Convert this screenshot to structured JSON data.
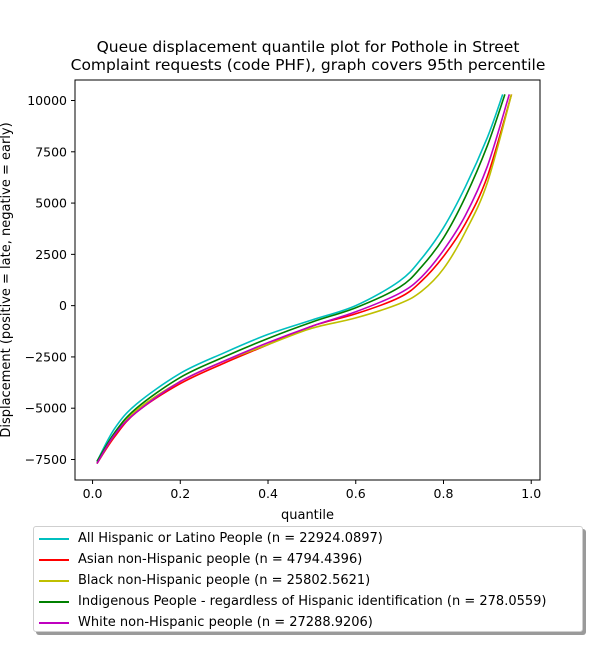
{
  "chart_data": {
    "type": "line",
    "title": "Queue displacement quantile plot for Pothole in Street\nComplaint  requests (code PHF), graph covers 95th percentile",
    "xlabel": "quantile",
    "ylabel": "Displacement (positive = late, negative = early)",
    "xlim": [
      -0.04,
      1.02
    ],
    "ylim": [
      -8500,
      11000
    ],
    "xticks": [
      "0.0",
      "0.2",
      "0.4",
      "0.6",
      "0.8",
      "1.0"
    ],
    "yticks": [
      "−7500",
      "−5000",
      "−2500",
      "0",
      "2500",
      "5000",
      "7500",
      "10000"
    ],
    "grid": false,
    "legend_position": "below",
    "series": [
      {
        "name": "All Hispanic or Latino People (n = 22924.0897)",
        "color": "#00bfbf",
        "x": [
          0.01,
          0.05,
          0.1,
          0.2,
          0.3,
          0.4,
          0.5,
          0.6,
          0.7,
          0.75,
          0.8,
          0.85,
          0.9,
          0.935
        ],
        "values": [
          -7600,
          -6000,
          -4800,
          -3300,
          -2300,
          -1400,
          -700,
          0,
          1200,
          2300,
          3800,
          5800,
          8200,
          10300
        ]
      },
      {
        "name": "Asian non-Hispanic people (n = 4794.4396)",
        "color": "#ff0000",
        "x": [
          0.01,
          0.05,
          0.1,
          0.2,
          0.3,
          0.4,
          0.5,
          0.6,
          0.7,
          0.75,
          0.8,
          0.85,
          0.9,
          0.955
        ],
        "values": [
          -7700,
          -6400,
          -5200,
          -3800,
          -2800,
          -1900,
          -1000,
          -400,
          400,
          1200,
          2400,
          4000,
          6300,
          10300
        ]
      },
      {
        "name": "Black non-Hispanic people (n = 25802.5621)",
        "color": "#bfbf00",
        "x": [
          0.01,
          0.05,
          0.1,
          0.2,
          0.3,
          0.4,
          0.5,
          0.6,
          0.7,
          0.75,
          0.8,
          0.85,
          0.9,
          0.955
        ],
        "values": [
          -7700,
          -6300,
          -5100,
          -3700,
          -2700,
          -1900,
          -1100,
          -600,
          100,
          700,
          1800,
          3600,
          6000,
          10300
        ]
      },
      {
        "name": "Indigenous People - regardless of Hispanic identification (n = 278.0559)",
        "color": "#008000",
        "x": [
          0.01,
          0.05,
          0.1,
          0.2,
          0.3,
          0.4,
          0.5,
          0.6,
          0.7,
          0.75,
          0.8,
          0.85,
          0.9,
          0.94
        ],
        "values": [
          -7600,
          -6200,
          -5000,
          -3500,
          -2500,
          -1600,
          -800,
          -100,
          900,
          1900,
          3300,
          5300,
          7800,
          10300
        ]
      },
      {
        "name": "White non-Hispanic people (n = 27288.9206)",
        "color": "#bf00bf",
        "x": [
          0.01,
          0.05,
          0.1,
          0.2,
          0.3,
          0.4,
          0.5,
          0.6,
          0.7,
          0.75,
          0.8,
          0.85,
          0.9,
          0.95
        ],
        "values": [
          -7700,
          -6300,
          -5200,
          -3700,
          -2700,
          -1800,
          -1000,
          -300,
          600,
          1400,
          2700,
          4400,
          6800,
          10300
        ]
      }
    ]
  }
}
